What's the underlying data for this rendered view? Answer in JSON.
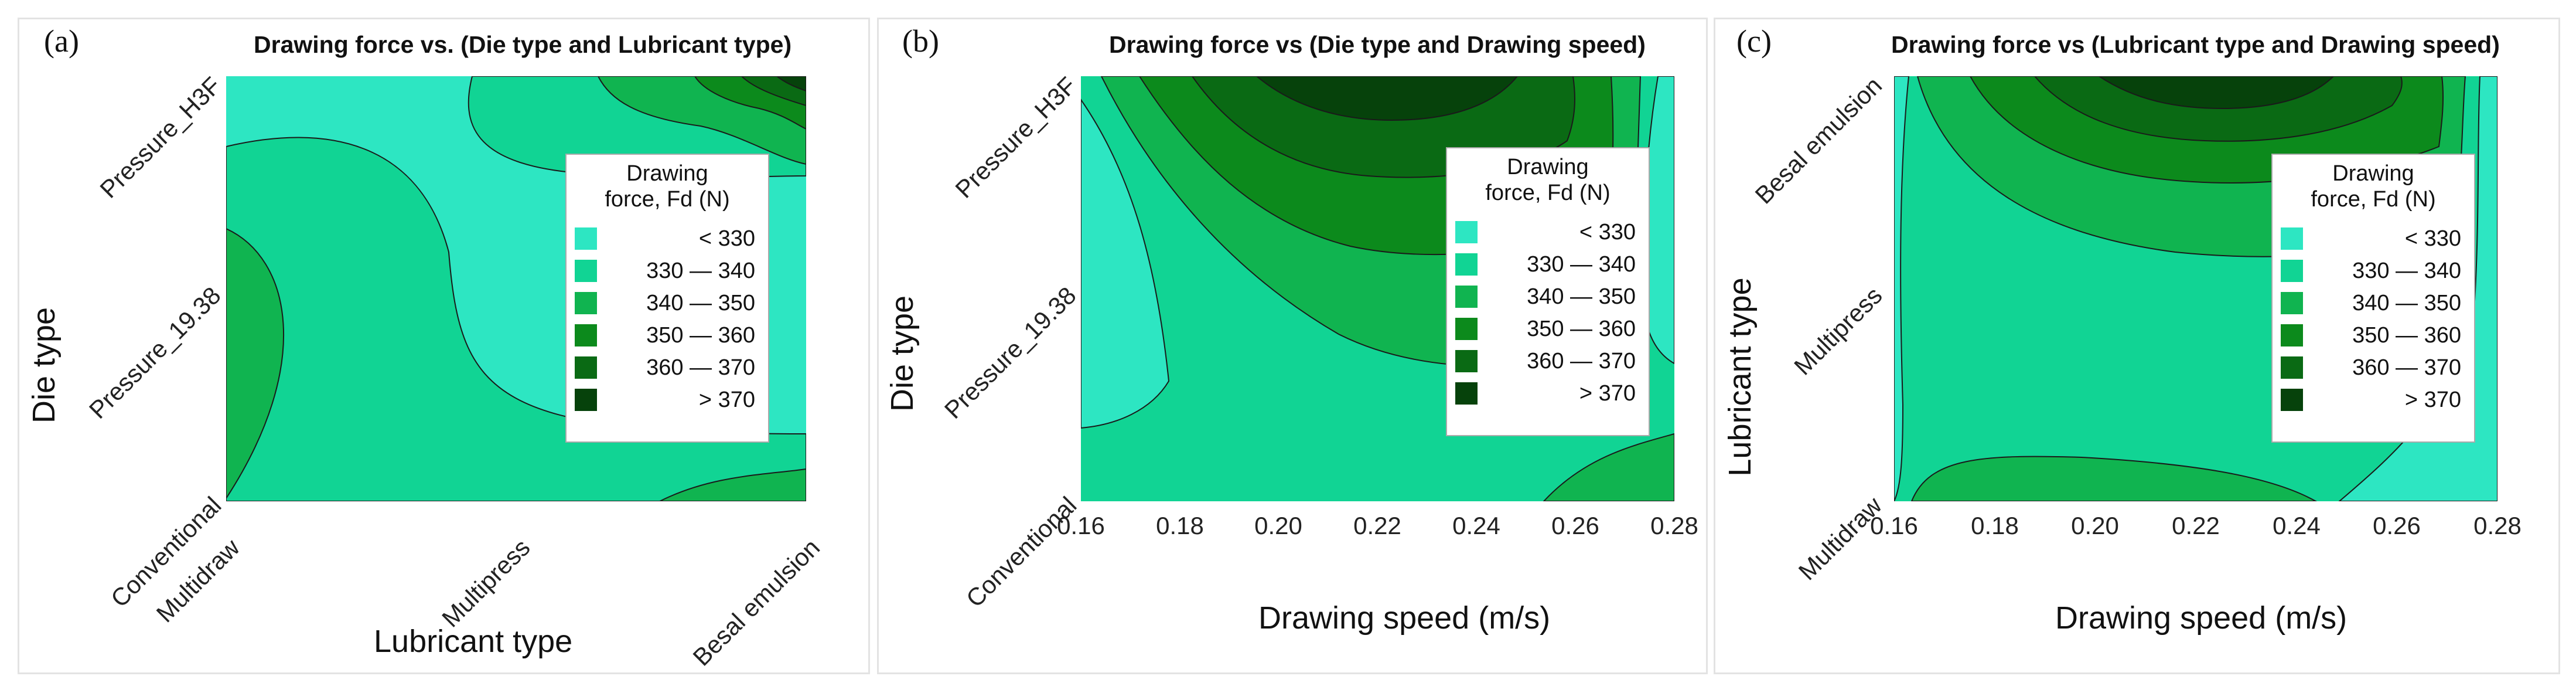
{
  "colors": {
    "level_1": "#2de6c2",
    "level_2": "#11d494",
    "level_3": "#10b450",
    "level_4": "#0c8a1c",
    "level_5": "#0a6a14",
    "level_6": "#06420b"
  },
  "legend": {
    "title_line1": "Drawing",
    "title_line2": "force, Fd (N)",
    "items": [
      "< 330",
      "330 — 340",
      "340 — 350",
      "350 — 360",
      "360 — 370",
      "> 370"
    ]
  },
  "panels": [
    {
      "letter": "(a)",
      "title": "Drawing force vs. (Die type and Lubricant type)",
      "xlabel": "Lubricant type",
      "ylabel": "Die type",
      "xticks": [
        "Multidraw",
        "Multipress",
        "Besal emulsion"
      ],
      "yticks": [
        "Conventional",
        "Pressure_19.38",
        "Pressure_H3F"
      ]
    },
    {
      "letter": "(b)",
      "title": "Drawing force vs (Die type and Drawing speed)",
      "xlabel": "Drawing speed (m/s)",
      "ylabel": "Die type",
      "xticks": [
        "0.16",
        "0.18",
        "0.20",
        "0.22",
        "0.24",
        "0.26",
        "0.28"
      ],
      "yticks": [
        "Conventional",
        "Pressure_19.38",
        "Pressure_H3F"
      ]
    },
    {
      "letter": "(c)",
      "title": "Drawing force vs (Lubricant type and Drawing speed)",
      "xlabel": "Drawing speed (m/s)",
      "ylabel": "Lubricant  type",
      "xticks": [
        "0.16",
        "0.18",
        "0.20",
        "0.22",
        "0.24",
        "0.26",
        "0.28"
      ],
      "yticks": [
        "Multidraw",
        "Multipress",
        "Besal emulsion"
      ]
    }
  ],
  "chart_data": [
    {
      "type": "heatmap",
      "title": "Drawing force vs. (Die type and Lubricant type)",
      "xlabel": "Lubricant type",
      "ylabel": "Die type",
      "x_categories": [
        "Multidraw",
        "Multipress",
        "Besal emulsion"
      ],
      "y_categories": [
        "Conventional",
        "Pressure_19.38",
        "Pressure_H3F"
      ],
      "z_label": "Drawing force, Fd (N)",
      "levels": [
        "< 330",
        "330 — 340",
        "340 — 350",
        "350 — 360",
        "360 — 370",
        "> 370"
      ],
      "max_region": "Pressure_H3F / Besal emulsion (> 370)",
      "min_region": "Pressure_19.38–H3F / Multipress (< 330)"
    },
    {
      "type": "heatmap",
      "title": "Drawing force vs (Die type and Drawing speed)",
      "xlabel": "Drawing speed (m/s)",
      "ylabel": "Die type",
      "x_range": [
        0.16,
        0.28
      ],
      "y_categories": [
        "Conventional",
        "Pressure_19.38",
        "Pressure_H3F"
      ],
      "z_label": "Drawing force, Fd (N)",
      "levels": [
        "< 330",
        "330 — 340",
        "340 — 350",
        "350 — 360",
        "360 — 370",
        "> 370"
      ],
      "max_region": "Pressure_H3F at ~0.22 m/s (> 370)"
    },
    {
      "type": "heatmap",
      "title": "Drawing force vs (Lubricant type and Drawing speed)",
      "xlabel": "Drawing speed (m/s)",
      "ylabel": "Lubricant type",
      "x_range": [
        0.16,
        0.28
      ],
      "y_categories": [
        "Multidraw",
        "Multipress",
        "Besal emulsion"
      ],
      "z_label": "Drawing force, Fd (N)",
      "levels": [
        "< 330",
        "330 — 340",
        "340 — 350",
        "350 — 360",
        "360 — 370",
        "> 370"
      ],
      "max_region": "Besal emulsion at ~0.22 m/s (> 370)"
    }
  ]
}
